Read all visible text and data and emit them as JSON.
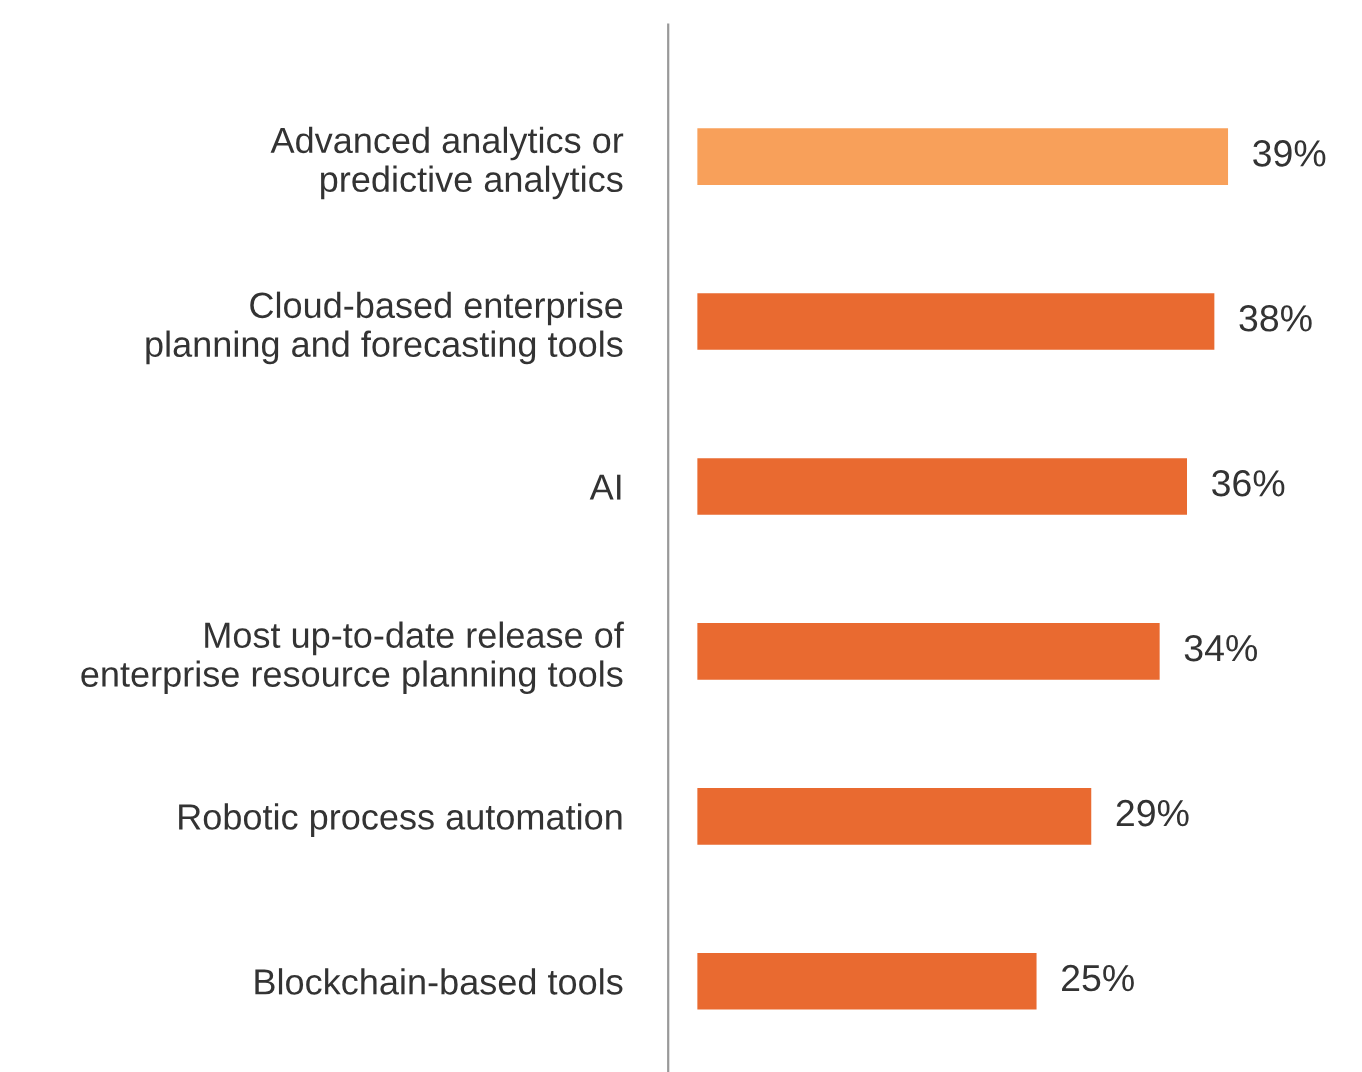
{
  "chart_data": {
    "type": "bar",
    "orientation": "horizontal",
    "data_labels": true,
    "categories": [
      "Advanced analytics or\npredictive analytics",
      "Cloud-based enterprise\nplanning and forecasting tools",
      "AI",
      "Most up-to-date release of\nenterprise resource planning tools",
      "Robotic process automation",
      "Blockchain-based tools"
    ],
    "values": [
      39,
      38,
      36,
      34,
      29,
      25
    ],
    "value_labels": [
      "39%",
      "38%",
      "36%",
      "34%",
      "29%",
      "25%"
    ],
    "colors": [
      "#f8a05a",
      "#e96a30",
      "#e96a30",
      "#e96a30",
      "#e96a30",
      "#e96a30"
    ],
    "grid": false,
    "legend": false
  }
}
